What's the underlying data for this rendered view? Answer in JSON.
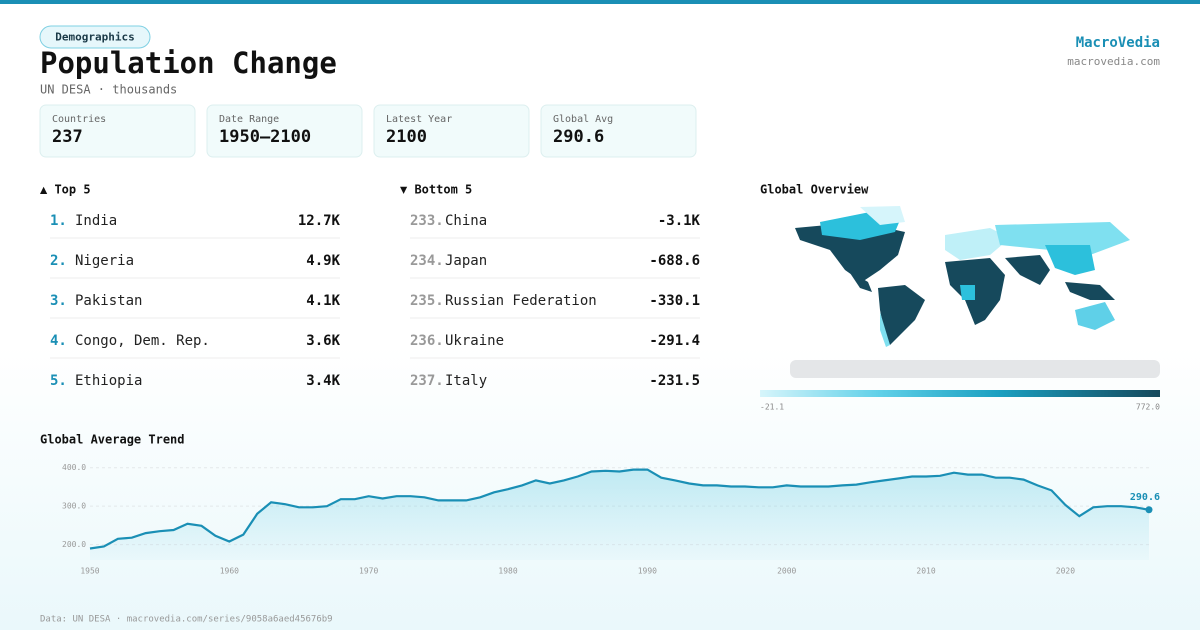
{
  "header": {
    "tag": "Demographics",
    "title": "Population Change",
    "subtitle": "UN DESA · thousands",
    "brand": "MacroVedia",
    "site": "macrovedia.com"
  },
  "stats": [
    {
      "label": "Countries",
      "value": "237"
    },
    {
      "label": "Date Range",
      "value": "1950–2100"
    },
    {
      "label": "Latest Year",
      "value": "2100"
    },
    {
      "label": "Global Avg",
      "value": "290.6"
    }
  ],
  "top": {
    "title": "▲ Top 5",
    "rows": [
      {
        "rank": "1.",
        "name": "India",
        "value": "12.7K"
      },
      {
        "rank": "2.",
        "name": "Nigeria",
        "value": "4.9K"
      },
      {
        "rank": "3.",
        "name": "Pakistan",
        "value": "4.1K"
      },
      {
        "rank": "4.",
        "name": "Congo, Dem. Rep.",
        "value": "3.6K"
      },
      {
        "rank": "5.",
        "name": "Ethiopia",
        "value": "3.4K"
      }
    ]
  },
  "bottom": {
    "title": "▼ Bottom 5",
    "rows": [
      {
        "rank": "233.",
        "name": "China",
        "value": "-3.1K"
      },
      {
        "rank": "234.",
        "name": "Japan",
        "value": "-688.6"
      },
      {
        "rank": "235.",
        "name": "Russian Federation",
        "value": "-330.1"
      },
      {
        "rank": "236.",
        "name": "Ukraine",
        "value": "-291.4"
      },
      {
        "rank": "237.",
        "name": "Italy",
        "value": "-231.5"
      }
    ]
  },
  "map": {
    "title": "Global Overview",
    "legend_min": "-21.1",
    "legend_max": "772.0"
  },
  "chart_data": {
    "type": "line",
    "title": "Global Average Trend",
    "color": "#1a8fb5",
    "x": [
      1950,
      1951,
      1952,
      1953,
      1954,
      1955,
      1956,
      1957,
      1958,
      1959,
      1960,
      1961,
      1962,
      1963,
      1964,
      1965,
      1966,
      1967,
      1968,
      1969,
      1970,
      1971,
      1972,
      1973,
      1974,
      1975,
      1976,
      1977,
      1978,
      1979,
      1980,
      1981,
      1982,
      1983,
      1984,
      1985,
      1986,
      1987,
      1988,
      1989,
      1990,
      1991,
      1992,
      1993,
      1994,
      1995,
      1996,
      1997,
      1998,
      1999,
      2000,
      2001,
      2002,
      2003,
      2004,
      2005,
      2006,
      2007,
      2008,
      2009,
      2010,
      2011,
      2012,
      2013,
      2014,
      2015,
      2016,
      2017,
      2018,
      2019,
      2020,
      2021,
      2022,
      2023,
      2024,
      2025,
      2026
    ],
    "values": [
      190,
      195,
      215,
      218,
      230,
      235,
      238,
      254,
      249,
      223,
      208,
      226,
      280,
      310,
      305,
      297,
      297,
      300,
      318,
      318,
      326,
      320,
      326,
      326,
      323,
      315,
      315,
      315,
      323,
      336,
      344,
      354,
      367,
      359,
      367,
      377,
      390,
      392,
      390,
      395,
      395,
      374,
      367,
      359,
      354,
      354,
      351,
      351,
      349,
      349,
      354,
      351,
      351,
      351,
      354,
      356,
      362,
      367,
      372,
      377,
      377,
      379,
      387,
      382,
      382,
      374,
      374,
      369,
      354,
      341,
      303,
      274,
      297,
      300,
      300,
      297,
      290.6
    ],
    "end_label": "290.6",
    "xlim": [
      1950,
      2026
    ],
    "ylim": [
      160,
      420
    ],
    "xticks": [
      1950,
      1960,
      1970,
      1980,
      1990,
      2000,
      2010,
      2020
    ],
    "yticks": [
      {
        "value": 200,
        "label": "200.0"
      },
      {
        "value": 300,
        "label": "300.0"
      },
      {
        "value": 400,
        "label": "400.0"
      }
    ],
    "grid": true
  },
  "footer": "Data: UN DESA · macrovedia.com/series/9058a6aed45676b9"
}
